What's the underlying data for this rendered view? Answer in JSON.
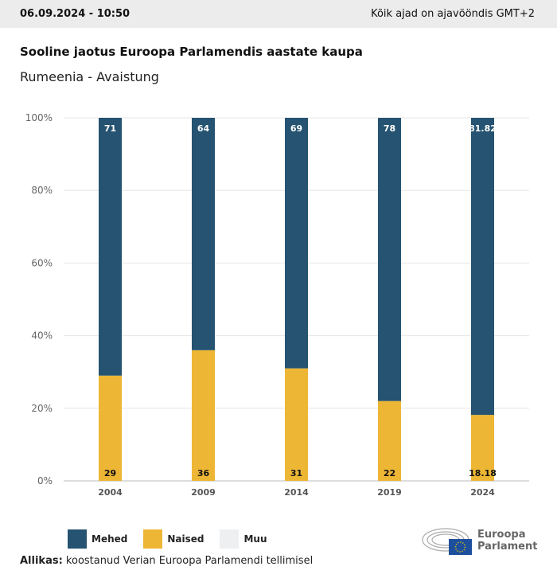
{
  "header": {
    "datetime": "06.09.2024 - 10:50",
    "timezone": "Kõik ajad on ajavööndis GMT+2"
  },
  "title": "Sooline jaotus Euroopa Parlamendis aastate kaupa",
  "subtitle": "Rumeenia - Avaistung",
  "chart_data": {
    "type": "bar",
    "stacked": true,
    "title": "Sooline jaotus Euroopa Parlamendis aastate kaupa",
    "categories": [
      "2004",
      "2009",
      "2014",
      "2019",
      "2024"
    ],
    "series": [
      {
        "name": "Naised",
        "color": "#edb635",
        "values": [
          29,
          36,
          31,
          22,
          18.18
        ]
      },
      {
        "name": "Mehed",
        "color": "#255371",
        "values": [
          71,
          64,
          69,
          78,
          81.82
        ]
      },
      {
        "name": "Muu",
        "color": "#eeeff1",
        "values": [
          0,
          0,
          0,
          0,
          0
        ]
      }
    ],
    "value_labels": {
      "Naised": [
        "29",
        "36",
        "31",
        "22",
        "18.18"
      ],
      "Mehed": [
        "71",
        "64",
        "69",
        "78",
        "81.82"
      ]
    },
    "yticks": [
      "0%",
      "20%",
      "40%",
      "60%",
      "80%",
      "100%"
    ],
    "ylim": [
      0,
      100
    ],
    "grid": true,
    "legend": "bottom-left"
  },
  "legend": [
    {
      "label": "Mehed",
      "color": "#255371"
    },
    {
      "label": "Naised",
      "color": "#edb635"
    },
    {
      "label": "Muu",
      "color": "#eeeff1"
    }
  ],
  "source": {
    "label": "Allikas:",
    "text": " koostanud Verian Euroopa Parlamendi tellimisel"
  },
  "logo": {
    "line1": "Euroopa",
    "line2": "Parlament"
  }
}
